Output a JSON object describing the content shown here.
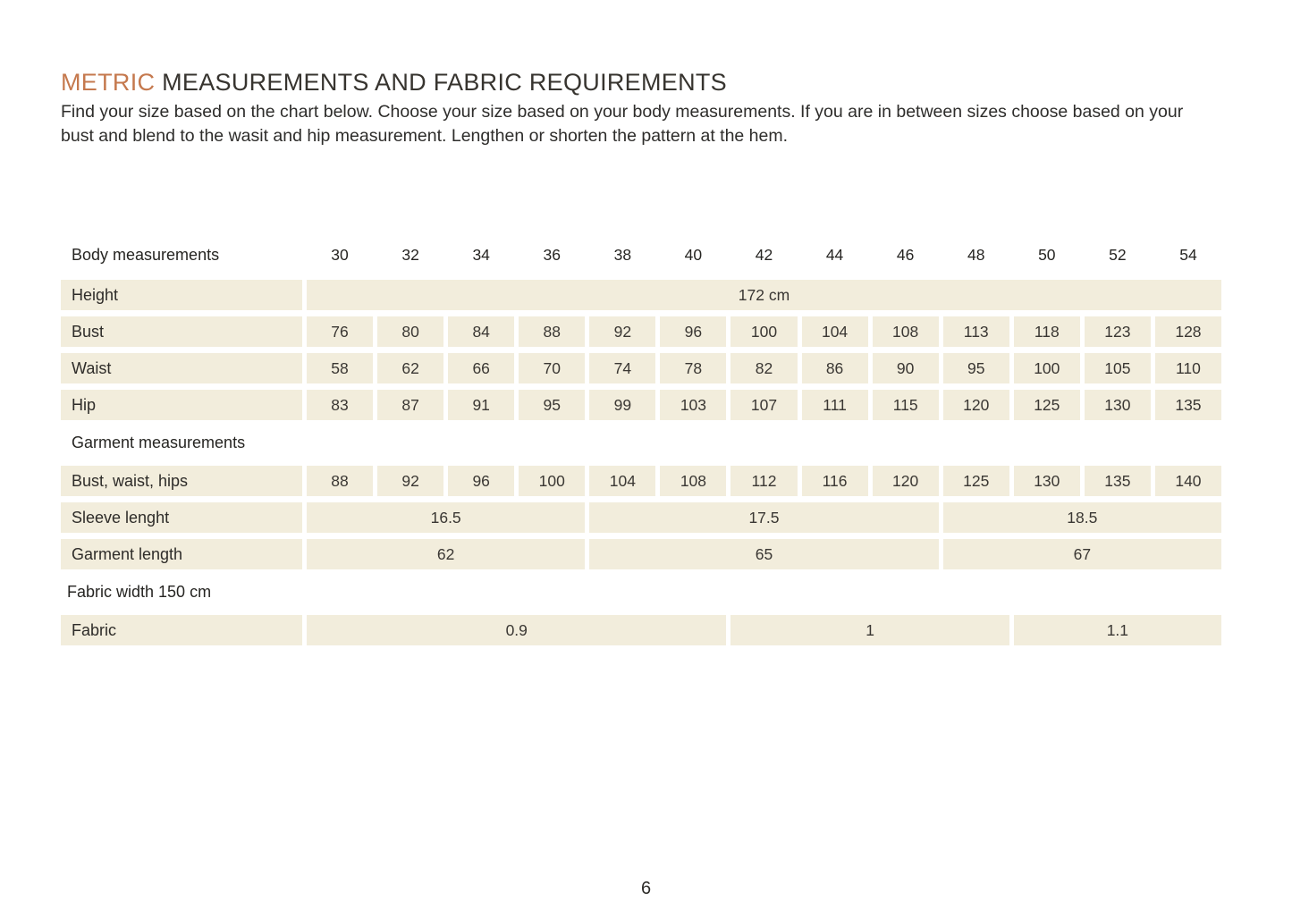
{
  "page": {
    "title_accent": "METRIC",
    "title_rest": " MEASUREMENTS AND FABRIC REQUIREMENTS",
    "intro": "Find your size based on the chart below. Choose your size based on your body measurements. If you are in between sizes choose based on your bust and blend to the wasit and hip measurement. Lengthen or shorten the pattern at the hem.",
    "page_number": "6"
  },
  "colors": {
    "accent_orange": "#c5794e",
    "cell_background": "#f2eddc",
    "text": "#2e2c29"
  },
  "table": {
    "rows": [
      {
        "type": "header",
        "label": "Body measurements",
        "cells": [
          "30",
          "32",
          "34",
          "36",
          "38",
          "40",
          "42",
          "44",
          "46",
          "48",
          "50",
          "52",
          "54"
        ]
      },
      {
        "type": "merged",
        "label": "Height",
        "spans": [
          {
            "value": "172 cm",
            "cols": 13
          }
        ]
      },
      {
        "type": "values",
        "label": "Bust",
        "values": [
          "76",
          "80",
          "84",
          "88",
          "92",
          "96",
          "100",
          "104",
          "108",
          "113",
          "118",
          "123",
          "128"
        ]
      },
      {
        "type": "values",
        "label": "Waist",
        "values": [
          "58",
          "62",
          "66",
          "70",
          "74",
          "78",
          "82",
          "86",
          "90",
          "95",
          "100",
          "105",
          "110"
        ]
      },
      {
        "type": "values",
        "label": "Hip",
        "values": [
          "83",
          "87",
          "91",
          "95",
          "99",
          "103",
          "107",
          "111",
          "115",
          "120",
          "125",
          "130",
          "135"
        ]
      },
      {
        "type": "section",
        "label": "Garment measurements"
      },
      {
        "type": "values",
        "label": "Bust, waist, hips",
        "values": [
          "88",
          "92",
          "96",
          "100",
          "104",
          "108",
          "112",
          "116",
          "120",
          "125",
          "130",
          "135",
          "140"
        ]
      },
      {
        "type": "merged",
        "label": "Sleeve lenght",
        "spans": [
          {
            "value": "16.5",
            "cols": 4
          },
          {
            "value": "17.5",
            "cols": 5
          },
          {
            "value": "18.5",
            "cols": 4
          }
        ]
      },
      {
        "type": "merged",
        "label": "Garment length",
        "spans": [
          {
            "value": "62",
            "cols": 4
          },
          {
            "value": "65",
            "cols": 5
          },
          {
            "value": "67",
            "cols": 4
          }
        ]
      },
      {
        "type": "section",
        "label": "Fabric width 150 cm"
      },
      {
        "type": "merged",
        "label": "Fabric",
        "spans": [
          {
            "value": "0.9",
            "cols": 6
          },
          {
            "value": "1",
            "cols": 4
          },
          {
            "value": "1.1",
            "cols": 3
          }
        ]
      }
    ]
  }
}
